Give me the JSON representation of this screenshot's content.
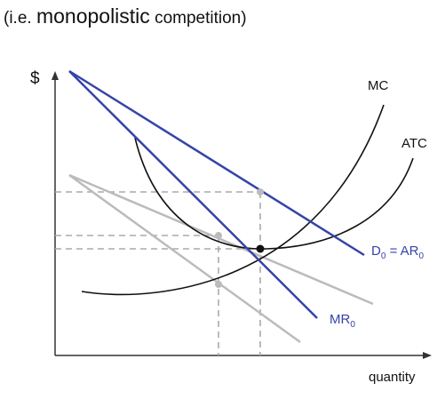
{
  "title": {
    "pre": "(i.e. ",
    "main": "monopolistic",
    "post": " competition)"
  },
  "axes": {
    "y": "$",
    "x": "quantity"
  },
  "curves": {
    "mc": "MC",
    "atc": "ATC",
    "demand": {
      "main": "D",
      "sub": "0",
      "rest": " = AR",
      "sub2": "0"
    },
    "mr": {
      "main": "MR",
      "sub": "0"
    }
  }
}
